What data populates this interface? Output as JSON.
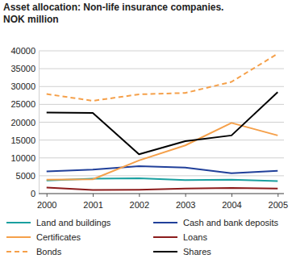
{
  "chart_data": {
    "type": "line",
    "title": "Asset allocation: Non-life insurance companies.",
    "subtitle": "NOK million",
    "categories": [
      "2000",
      "2001",
      "2002",
      "2003",
      "2004",
      "2005"
    ],
    "ylim": [
      0,
      40000
    ],
    "yticks": [
      0,
      5000,
      10000,
      15000,
      20000,
      25000,
      30000,
      35000,
      40000
    ],
    "grid": true,
    "legend": "bottom",
    "series": [
      {
        "name": "Land and buildings",
        "color": "#1aa0a0",
        "line_style": "solid",
        "values": [
          3700,
          4200,
          4300,
          3800,
          3900,
          3500
        ]
      },
      {
        "name": "Cash and bank deposits",
        "color": "#21409a",
        "line_style": "solid",
        "values": [
          6200,
          6700,
          7700,
          7300,
          5700,
          6400
        ]
      },
      {
        "name": "Certificates",
        "color": "#f5a04a",
        "line_style": "solid",
        "values": [
          3900,
          4000,
          9300,
          13500,
          19800,
          16300
        ]
      },
      {
        "name": "Loans",
        "color": "#8c1c1c",
        "line_style": "solid",
        "values": [
          1700,
          1000,
          1100,
          1400,
          1600,
          1400
        ]
      },
      {
        "name": "Bonds",
        "color": "#f5a04a",
        "line_style": "dashed",
        "values": [
          27900,
          26000,
          27800,
          28200,
          31300,
          39200
        ]
      },
      {
        "name": "Shares",
        "color": "#000000",
        "line_style": "solid",
        "values": [
          22700,
          22600,
          11000,
          14700,
          16300,
          28400
        ]
      }
    ]
  }
}
